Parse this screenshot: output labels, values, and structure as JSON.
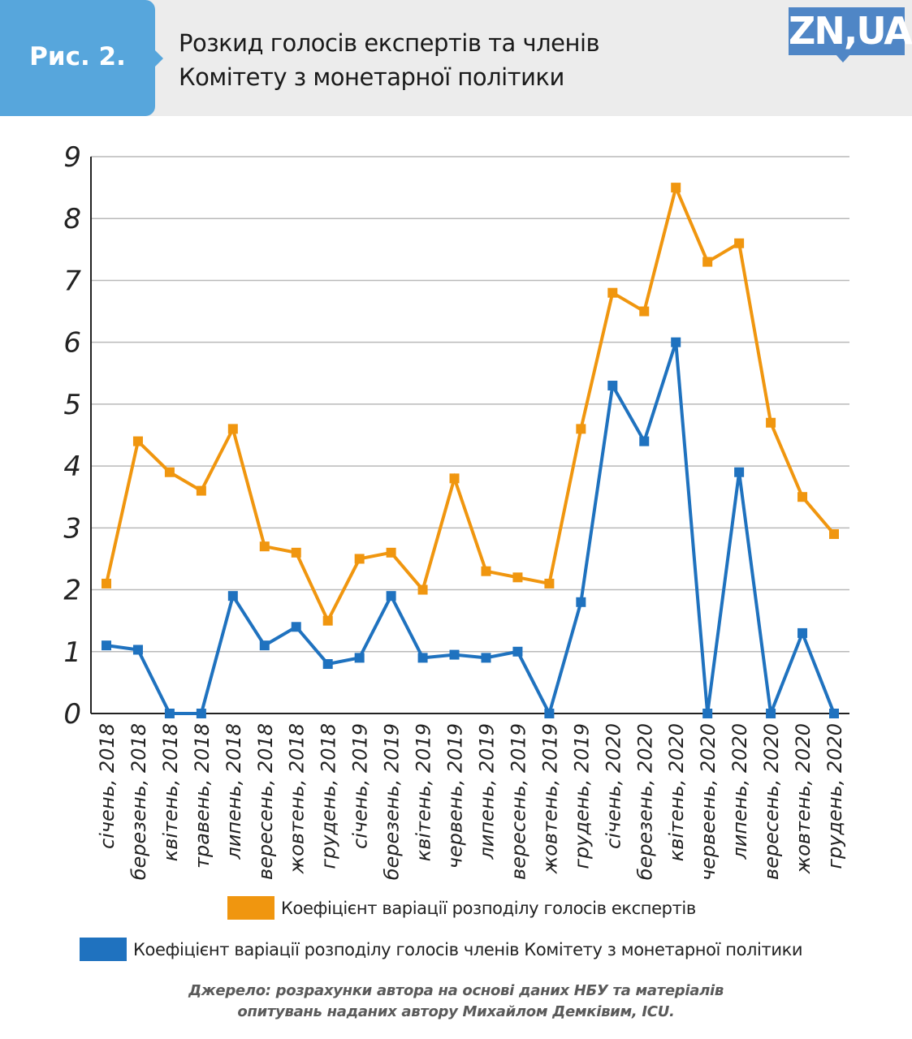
{
  "header": {
    "figure_label": "Рис. 2.",
    "title_line1": "Розкид голосів експертів та членів",
    "title_line2": "Комітету з монетарної політики",
    "logo_text": "ZN,UA"
  },
  "colors": {
    "experts": "#f0960f",
    "committee": "#1f72bf",
    "badge": "#57a6dc",
    "logo": "#4f86c6"
  },
  "chart_data": {
    "type": "line",
    "title": "Розкид голосів експертів та членів Комітету з монетарної політики",
    "xlabel": "",
    "ylabel": "",
    "ylim": [
      0,
      9
    ],
    "yticks": [
      "0",
      "1",
      "2",
      "3",
      "4",
      "5",
      "6",
      "7",
      "8",
      "9"
    ],
    "grid": true,
    "legend_position": "bottom",
    "categories": [
      "січень, 2018",
      "березень, 2018",
      "квітень, 2018",
      "травень, 2018",
      "липень, 2018",
      "вересень, 2018",
      "жовтень, 2018",
      "грудень, 2018",
      "січень, 2019",
      "березень, 2019",
      "квітень, 2019",
      "червень, 2019",
      "липень, 2019",
      "вересень, 2019",
      "жовтень, 2019",
      "грудень, 2019",
      "січень, 2020",
      "березень, 2020",
      "квітень, 2020",
      "червеень, 2020",
      "липень, 2020",
      "вересень, 2020",
      "жовтень, 2020",
      "грудень, 2020"
    ],
    "series": [
      {
        "name": "Коефіцієнт варіації розподілу голосів експертів",
        "color": "#f0960f",
        "values": [
          2.1,
          4.4,
          3.9,
          3.6,
          4.6,
          2.7,
          2.6,
          1.5,
          2.5,
          2.6,
          2.0,
          3.8,
          2.3,
          2.2,
          2.1,
          4.6,
          6.8,
          6.5,
          8.5,
          7.3,
          7.6,
          4.7,
          3.5,
          2.9
        ]
      },
      {
        "name": "Коефіцієнт варіації розподілу голосів членів Комітету з монетарної політики",
        "color": "#1f72bf",
        "values": [
          1.1,
          1.03,
          0.0,
          0.0,
          1.9,
          1.1,
          1.4,
          0.8,
          0.9,
          1.9,
          0.9,
          0.95,
          0.9,
          1.0,
          0.0,
          1.8,
          5.3,
          4.4,
          6.0,
          0.0,
          3.9,
          0.0,
          1.3,
          0.0
        ]
      }
    ]
  },
  "source": {
    "line1": "Джерело: розрахунки автора на основі даних НБУ та матеріалів",
    "line2": "опитувань наданих автору Михайлом Демківим, ICU."
  }
}
